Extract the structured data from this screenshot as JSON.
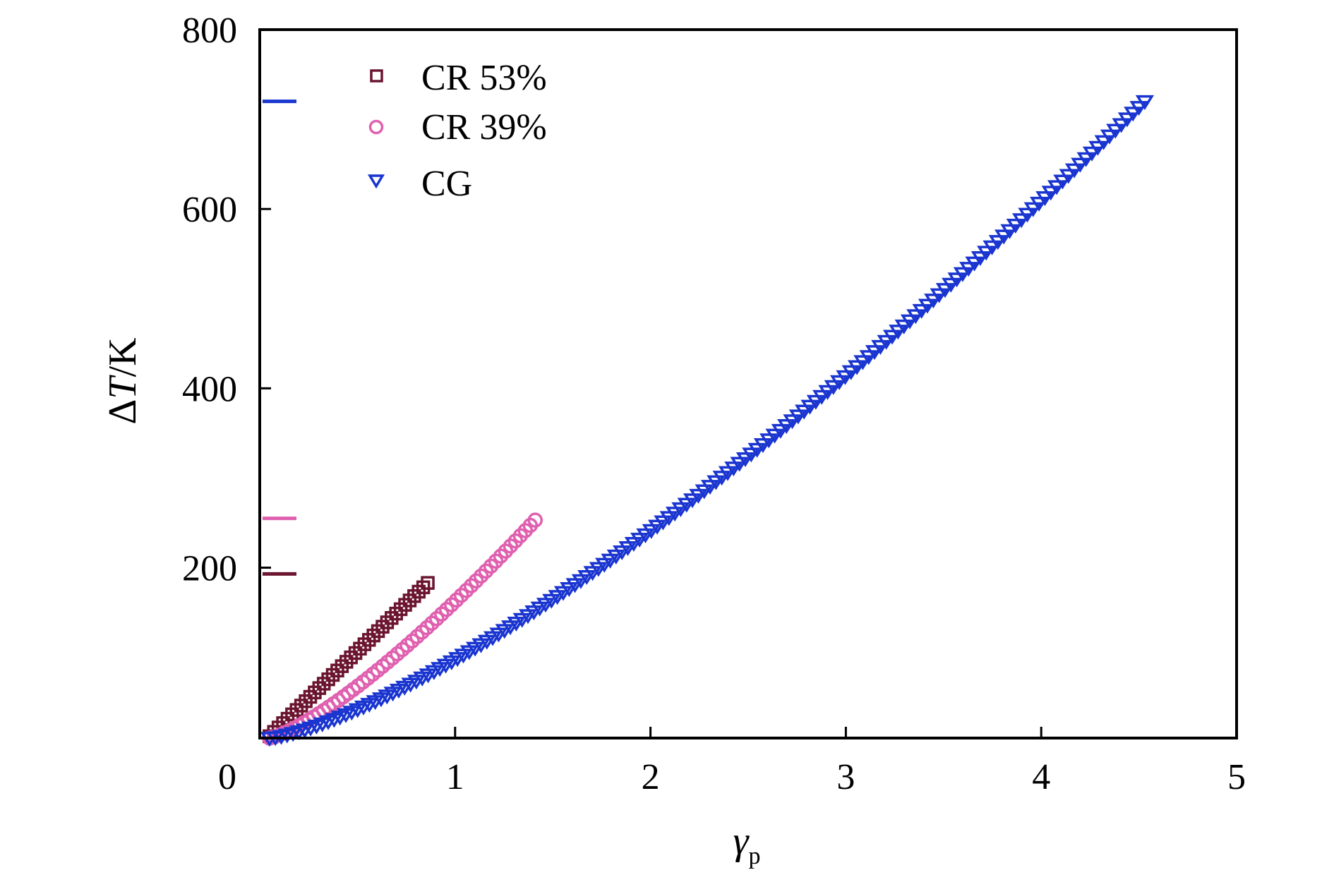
{
  "chart_data": {
    "type": "scatter",
    "title": "",
    "xlabel": "γp",
    "xlabel_main": "γ",
    "xlabel_sub": "p",
    "ylabel": "ΔT/K",
    "ylabel_prefix": "Δ",
    "ylabel_var": "T",
    "ylabel_suffix": "/K",
    "xlim": [
      0,
      5
    ],
    "ylim": [
      10,
      800
    ],
    "x_ticks": [
      0,
      1,
      2,
      3,
      4,
      5
    ],
    "x_tick_labels": [
      "0",
      "1",
      "2",
      "3",
      "4",
      "5"
    ],
    "y_ticks": [
      200,
      400,
      600,
      800
    ],
    "y_tick_labels": [
      "200",
      "400",
      "600",
      "800"
    ],
    "grid": false,
    "legend_position": "top-left",
    "series": [
      {
        "name": "CR 53%",
        "marker": "square",
        "color": "#6b1530",
        "x_range": [
          0.05,
          0.86
        ],
        "y_range": [
          12,
          183
        ],
        "exponent": 1.0,
        "points": 36,
        "max_marker_y": 193
      },
      {
        "name": "CR 39%",
        "marker": "circle",
        "color": "#e060b0",
        "x_range": [
          0.05,
          1.41
        ],
        "y_range": [
          10,
          253
        ],
        "exponent": 1.3,
        "points": 55,
        "max_marker_y": 255
      },
      {
        "name": "CG",
        "marker": "triangle-down",
        "color": "#1a35d0",
        "x_range": [
          0.05,
          4.53
        ],
        "y_range": [
          10,
          720
        ],
        "exponent": 1.35,
        "points": 150,
        "max_marker_y": 720
      }
    ]
  }
}
